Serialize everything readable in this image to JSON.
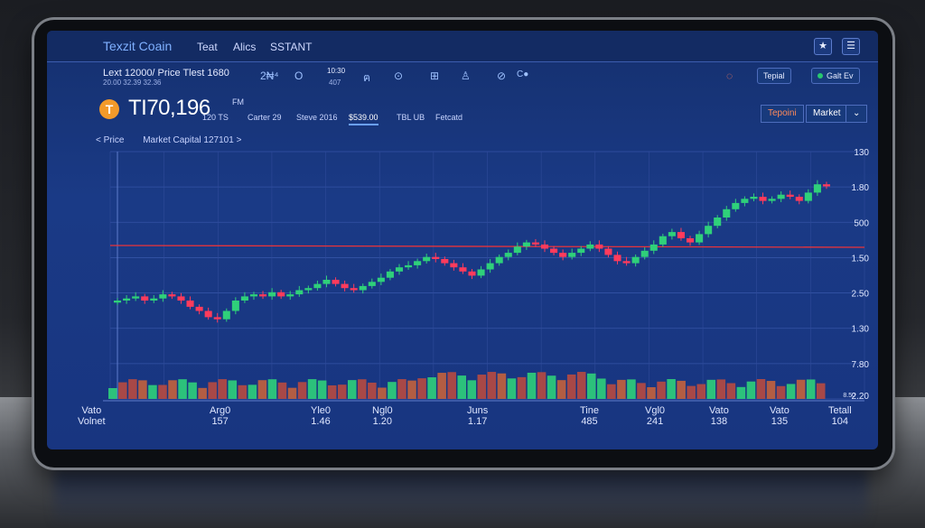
{
  "app": {
    "brand": "Texzit Coain"
  },
  "nav": {
    "items": [
      "Teat",
      "Alics",
      "SSTANT"
    ]
  },
  "toolbar": {
    "line1": "Lext 12000/  Price  Tlest 1680",
    "line2": "20.00  32.39  32.36",
    "stats": [
      {
        "top": "10:30",
        "bottom": "407"
      }
    ],
    "icon_labels": [
      "2₦⁴",
      "Ο",
      "ฅ",
      "⊙",
      "⊞",
      "♙",
      "⊘",
      "C●"
    ],
    "right_btn1": "Tepial",
    "right_btn2": "Galt Ev"
  },
  "ticker": {
    "coin_symbol": "T",
    "price": "TI70,196",
    "suffix_top": "FM",
    "suffix_bottom": "120 TS",
    "stats": [
      "Carter 29",
      "Steve 2016",
      "$539.00",
      "TBL UB",
      "Fetcatd"
    ],
    "active_stat": 2,
    "btn_left": "Tepoini",
    "btn_right": "Market"
  },
  "chart_tabs": {
    "left": "< Price",
    "right": "Market Capital 127101 >"
  },
  "axis": {
    "y_labels": [
      "130",
      "1.80",
      "500",
      "1.50",
      "2.50",
      "1.30",
      "7.80",
      "2.20"
    ],
    "y_small": "8.50"
  },
  "footer": {
    "columns": [
      {
        "label": "Vato",
        "value": "Volnet"
      },
      {
        "label": "Arg0",
        "value": "157"
      },
      {
        "label": "Yle0",
        "value": "1.46"
      },
      {
        "label": "Ngl0",
        "value": "1.20"
      },
      {
        "label": "Juns",
        "value": "1.17"
      },
      {
        "label": "Tine",
        "value": "485"
      },
      {
        "label": "Vgl0",
        "value": "241"
      },
      {
        "label": "Vato",
        "value": "138"
      },
      {
        "label": "Vato",
        "value": "135"
      },
      {
        "label": "Tetall",
        "value": "104"
      }
    ]
  },
  "colors": {
    "up": "#2fd07a",
    "down": "#ff3b5c",
    "refline": "#e8333b",
    "accent": "#6aa0ff"
  },
  "chart_data": {
    "type": "candlestick",
    "title": "",
    "series_close": [
      0.3,
      0.31,
      0.32,
      0.3,
      0.31,
      0.33,
      0.32,
      0.3,
      0.27,
      0.25,
      0.22,
      0.21,
      0.25,
      0.3,
      0.32,
      0.33,
      0.32,
      0.34,
      0.32,
      0.33,
      0.35,
      0.36,
      0.38,
      0.4,
      0.38,
      0.36,
      0.35,
      0.37,
      0.39,
      0.41,
      0.44,
      0.46,
      0.47,
      0.49,
      0.51,
      0.5,
      0.48,
      0.46,
      0.44,
      0.42,
      0.45,
      0.48,
      0.51,
      0.53,
      0.56,
      0.58,
      0.57,
      0.55,
      0.53,
      0.51,
      0.53,
      0.55,
      0.57,
      0.55,
      0.52,
      0.49,
      0.48,
      0.51,
      0.54,
      0.57,
      0.61,
      0.63,
      0.6,
      0.58,
      0.62,
      0.66,
      0.7,
      0.74,
      0.77,
      0.79,
      0.8,
      0.78,
      0.79,
      0.81,
      0.8,
      0.78,
      0.82,
      0.86,
      0.85
    ]
  }
}
